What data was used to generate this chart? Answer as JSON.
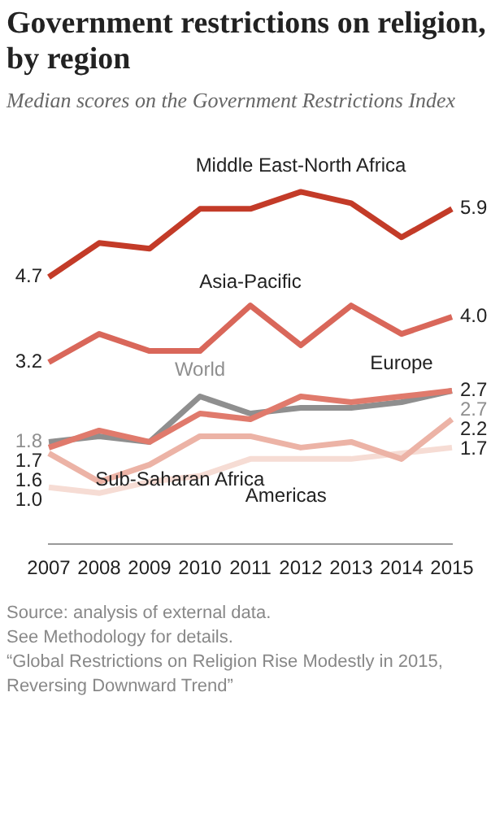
{
  "chart_data": {
    "type": "line",
    "title": "Government restrictions on religion, by region",
    "subtitle": "Median scores on the Government Restrictions Index",
    "categories": [
      "2007",
      "2008",
      "2009",
      "2010",
      "2011",
      "2012",
      "2013",
      "2014",
      "2015"
    ],
    "series": [
      {
        "name": "Middle East-North Africa",
        "color": "#c33b28",
        "values": [
          4.7,
          5.3,
          5.2,
          5.9,
          5.9,
          6.2,
          6.0,
          5.4,
          5.9
        ],
        "value_labels": [
          "4.7",
          null,
          null,
          null,
          null,
          null,
          null,
          null,
          "5.9"
        ]
      },
      {
        "name": "Asia-Pacific",
        "color": "#d9675a",
        "values": [
          3.2,
          3.7,
          3.4,
          3.4,
          4.2,
          3.5,
          4.2,
          3.7,
          4.0
        ],
        "value_labels": [
          "3.2",
          null,
          null,
          null,
          null,
          null,
          null,
          null,
          "4.0"
        ]
      },
      {
        "name": "Europe",
        "color": "#e07a6c",
        "values": [
          1.7,
          2.0,
          1.8,
          2.3,
          2.2,
          2.6,
          2.5,
          2.6,
          2.7
        ],
        "value_labels": [
          "1.7",
          null,
          null,
          null,
          null,
          null,
          null,
          null,
          "2.7"
        ]
      },
      {
        "name": "World",
        "color": "#8f8f8f",
        "values": [
          1.8,
          1.9,
          1.8,
          2.6,
          2.3,
          2.4,
          2.4,
          2.5,
          2.7
        ],
        "value_labels": [
          "1.8",
          null,
          null,
          null,
          null,
          null,
          null,
          null,
          "2.7"
        ]
      },
      {
        "name": "Sub-Saharan Africa",
        "color": "#ecb3a6",
        "values": [
          1.6,
          1.1,
          1.4,
          1.9,
          1.9,
          1.7,
          1.8,
          1.5,
          2.2
        ],
        "value_labels": [
          "1.6",
          null,
          null,
          null,
          null,
          null,
          null,
          null,
          "2.2"
        ]
      },
      {
        "name": "Americas",
        "color": "#f6dcd4",
        "values": [
          1.0,
          0.9,
          1.1,
          1.2,
          1.5,
          1.5,
          1.5,
          1.6,
          1.7
        ],
        "value_labels": [
          "1.0",
          null,
          null,
          null,
          null,
          null,
          null,
          null,
          "1.7"
        ]
      }
    ],
    "tick_labels": "x",
    "grid": false,
    "legend": false,
    "marker": "none",
    "line_style": "solid",
    "annotations": [
      "Source: analysis of external data.",
      "See Methodology for details.",
      "“Global Restrictions on Religion Rise Modestly in 2015, Reversing Downward Trend”"
    ]
  }
}
